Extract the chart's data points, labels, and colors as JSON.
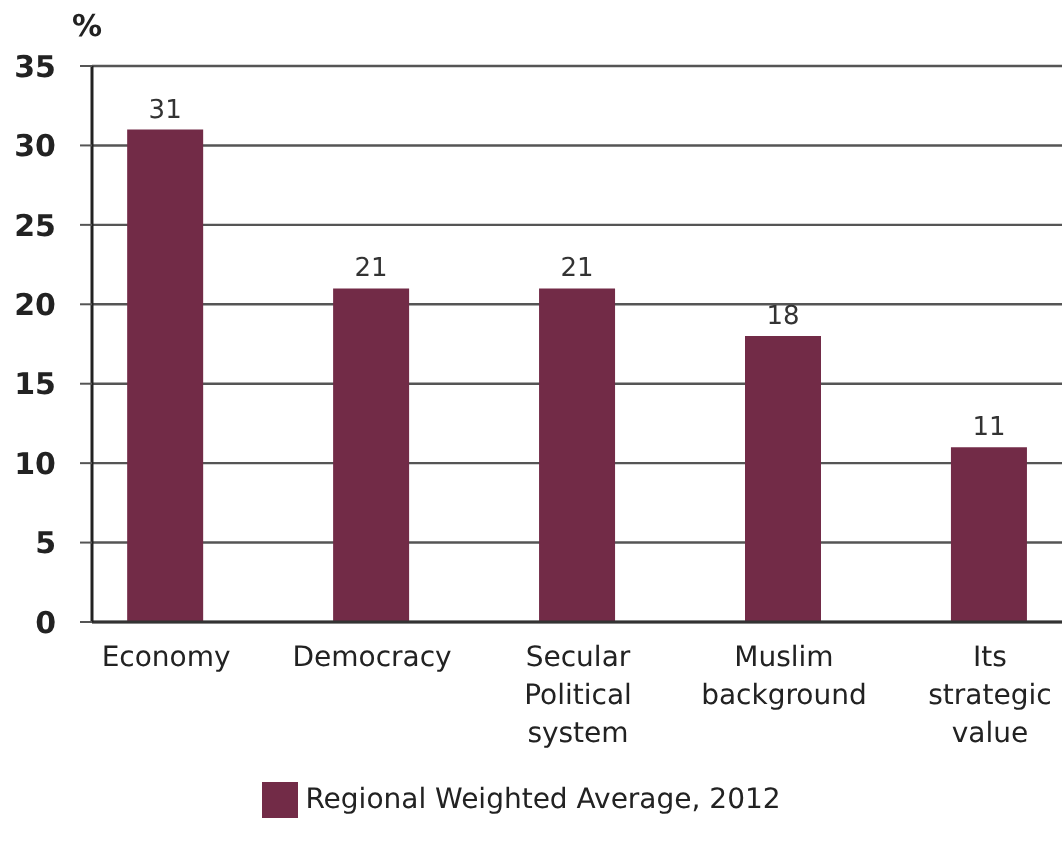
{
  "chart_data": {
    "type": "bar",
    "ylabel": "%",
    "categories": [
      "Economy",
      "Democracy",
      "Secular Political system",
      "Muslim background",
      "Its strategic value"
    ],
    "series": [
      {
        "name": "Regional Weighted Average, 2012",
        "color": "#722b47",
        "values": [
          31,
          21,
          21,
          18,
          11
        ]
      }
    ],
    "ylim": [
      0,
      35
    ],
    "yticks": [
      0,
      5,
      10,
      15,
      20,
      25,
      30,
      35
    ],
    "grid": "y",
    "legend": "bottom",
    "data_labels": true
  }
}
